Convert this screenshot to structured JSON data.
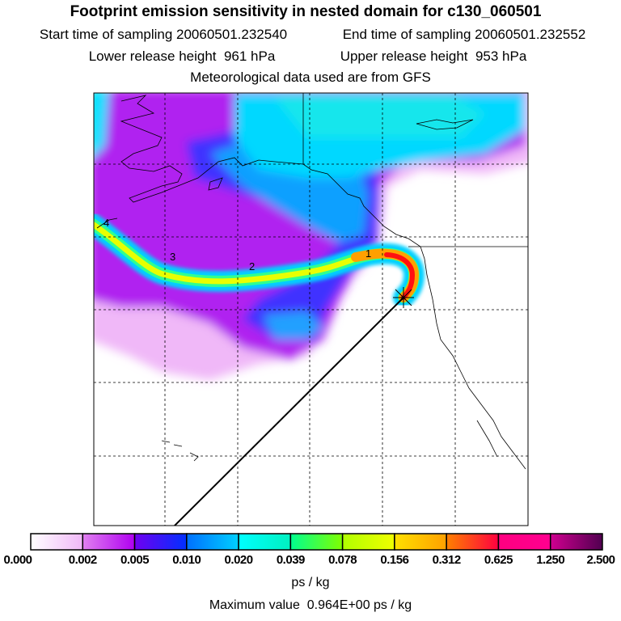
{
  "header": {
    "title": "Footprint emission sensitivity in nested domain for c130_060501",
    "start_label": "Start time of sampling 20060501.232540",
    "end_label": "End time of sampling 20060501.232552",
    "lower_label": "Lower release height  961 hPa",
    "upper_label": "Upper release height  953 hPa",
    "met_label": "Meteorological data used are from GFS"
  },
  "map": {
    "day_labels": [
      "1",
      "2",
      "3",
      "4"
    ],
    "release_marker": "asterisk-star-icon"
  },
  "colorbar": {
    "levels": [
      "0.000",
      "0.002",
      "0.005",
      "0.010",
      "0.020",
      "0.039",
      "0.078",
      "0.156",
      "0.312",
      "0.625",
      "1.250",
      "2.500"
    ],
    "colors": [
      [
        "#ffffff",
        "#f0b8f8"
      ],
      [
        "#e080f0",
        "#b000f0"
      ],
      [
        "#7000f0",
        "#0030ff"
      ],
      [
        "#0070ff",
        "#00d0ff"
      ],
      [
        "#00ffff",
        "#00f0c0"
      ],
      [
        "#00ff90",
        "#80ff00"
      ],
      [
        "#b0ff00",
        "#f0ff00"
      ],
      [
        "#ffe000",
        "#ffa000"
      ],
      [
        "#ff8000",
        "#ff0040"
      ],
      [
        "#ff0080",
        "#ff0090"
      ],
      [
        "#d00090",
        "#500050"
      ]
    ],
    "units": "ps / kg",
    "max_value": "Maximum value  0.964E+00 ps / kg"
  }
}
